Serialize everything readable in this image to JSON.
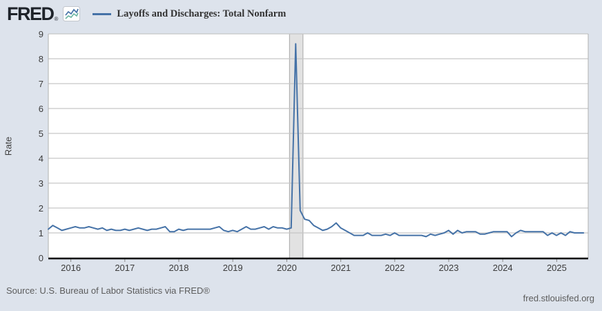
{
  "header": {
    "brand": "FRED",
    "registered_mark": "®",
    "legend": {
      "label": "Layoffs and Discharges: Total Nonfarm"
    }
  },
  "footer": {
    "source": "Source: U.S. Bureau of Labor Statistics via FRED®",
    "link": "fred.stlouisfed.org"
  },
  "chart_data": {
    "type": "line",
    "title": "Layoffs and Discharges: Total Nonfarm",
    "ylabel": "Rate",
    "xlabel": "",
    "frequency": "monthly",
    "ylim": [
      0,
      9
    ],
    "xlim": [
      2015.583,
      2025.583
    ],
    "yticks": [
      0,
      1,
      2,
      3,
      4,
      5,
      6,
      7,
      8,
      9
    ],
    "xticks": [
      2016,
      2017,
      2018,
      2019,
      2020,
      2021,
      2022,
      2023,
      2024,
      2025
    ],
    "grid": "horizontal",
    "legend_position": "top-left",
    "recession_band": {
      "from": 2020.05,
      "to": 2020.3
    },
    "x_start": 2015.5833,
    "x_step": 0.0833,
    "series": [
      {
        "name": "Layoffs and Discharges: Total Nonfarm",
        "color": "#4572a7",
        "values": [
          1.15,
          1.3,
          1.2,
          1.1,
          1.15,
          1.2,
          1.25,
          1.2,
          1.2,
          1.25,
          1.2,
          1.15,
          1.2,
          1.1,
          1.15,
          1.1,
          1.1,
          1.15,
          1.1,
          1.15,
          1.2,
          1.15,
          1.1,
          1.15,
          1.15,
          1.2,
          1.25,
          1.05,
          1.05,
          1.15,
          1.1,
          1.15,
          1.15,
          1.15,
          1.15,
          1.15,
          1.15,
          1.2,
          1.25,
          1.1,
          1.05,
          1.1,
          1.05,
          1.15,
          1.25,
          1.15,
          1.15,
          1.2,
          1.25,
          1.15,
          1.25,
          1.2,
          1.2,
          1.15,
          1.2,
          8.6,
          1.9,
          1.55,
          1.5,
          1.3,
          1.2,
          1.1,
          1.15,
          1.25,
          1.4,
          1.2,
          1.1,
          1.0,
          0.9,
          0.9,
          0.9,
          1.0,
          0.9,
          0.9,
          0.9,
          0.95,
          0.9,
          1.0,
          0.9,
          0.9,
          0.9,
          0.9,
          0.9,
          0.9,
          0.85,
          0.95,
          0.9,
          0.95,
          1.0,
          1.1,
          0.95,
          1.1,
          1.0,
          1.05,
          1.05,
          1.05,
          0.95,
          0.95,
          1.0,
          1.05,
          1.05,
          1.05,
          1.05,
          0.85,
          1.0,
          1.1,
          1.05,
          1.05,
          1.05,
          1.05,
          1.05,
          0.9,
          1.0,
          0.9,
          1.0,
          0.9,
          1.05,
          1.0,
          1.0,
          1.0
        ]
      }
    ],
    "colors": {
      "line": "#4572a7",
      "plot_bg": "#ffffff",
      "page_bg": "#dde3ec",
      "gridline": "#c6c6c6",
      "plot_border": "#b0b0b0",
      "axis": "#000000",
      "tick": "#8a8a8a",
      "recession_fill": "#e2e2e2",
      "recession_edge": "#a8a8a8"
    }
  }
}
